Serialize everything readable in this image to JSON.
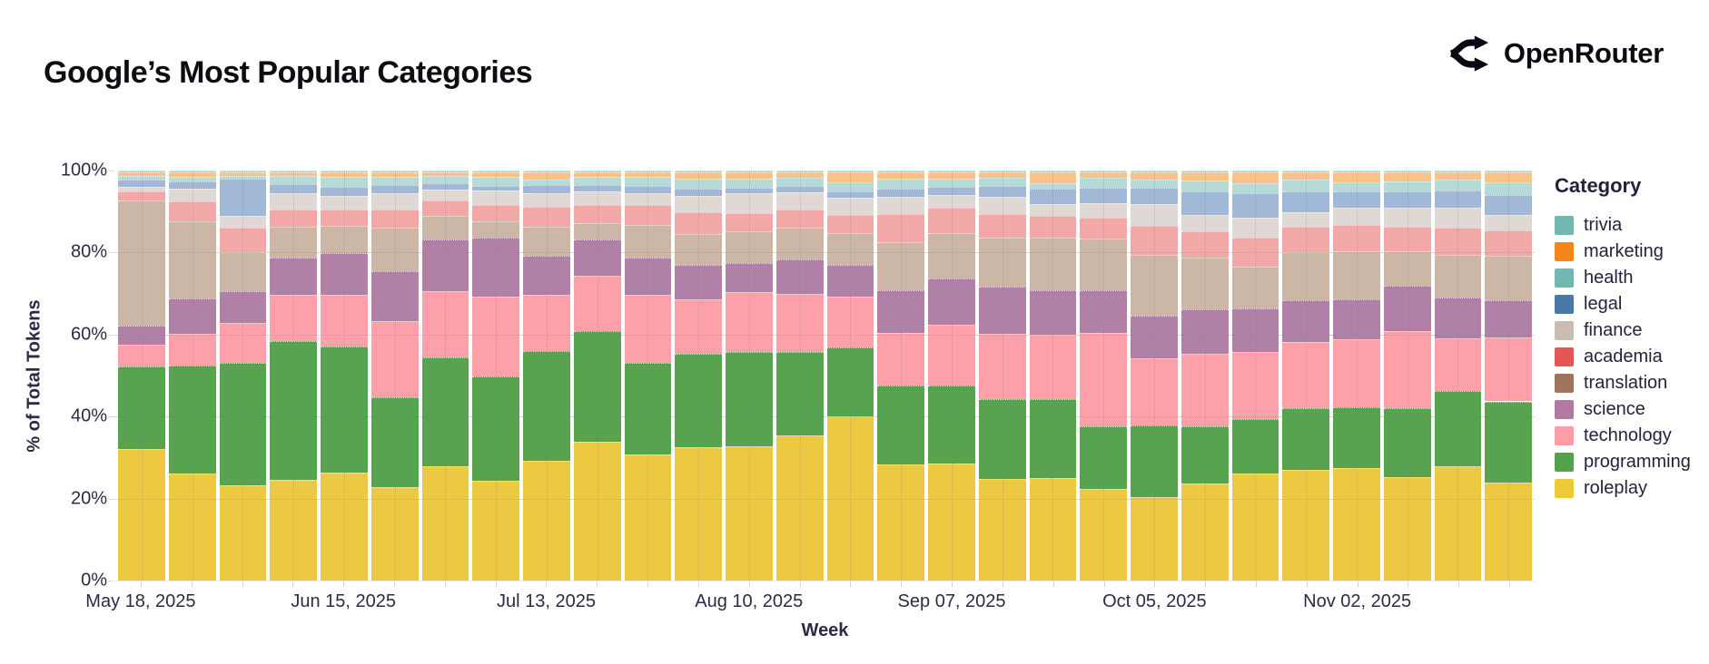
{
  "header": {
    "title": "Google’s Most Popular Categories",
    "brand": "OpenRouter"
  },
  "chart_data": {
    "type": "bar",
    "subtype": "stacked-100-percent",
    "title": "Google’s Most Popular Categories",
    "xlabel": "Week",
    "ylabel": "% of Total Tokens",
    "ylim": [
      0,
      100
    ],
    "grid": true,
    "y_ticks": [
      "0%",
      "20%",
      "40%",
      "60%",
      "80%",
      "100%"
    ],
    "legend_title": "Category",
    "legend_position": "right",
    "x": [
      "May 18, 2025",
      "May 25, 2025",
      "Jun 01, 2025",
      "Jun 08, 2025",
      "Jun 15, 2025",
      "Jun 22, 2025",
      "Jun 29, 2025",
      "Jul 06, 2025",
      "Jul 13, 2025",
      "Jul 20, 2025",
      "Jul 27, 2025",
      "Aug 03, 2025",
      "Aug 10, 2025",
      "Aug 17, 2025",
      "Aug 24, 2025",
      "Aug 31, 2025",
      "Sep 07, 2025",
      "Sep 14, 2025",
      "Sep 21, 2025",
      "Sep 28, 2025",
      "Oct 05, 2025",
      "Oct 12, 2025",
      "Oct 19, 2025",
      "Oct 26, 2025",
      "Nov 02, 2025",
      "Nov 09, 2025",
      "Nov 16, 2025",
      "Nov 23, 2025"
    ],
    "labeled_x_indices": [
      0,
      4,
      8,
      12,
      16,
      20,
      24
    ],
    "stack_order_bottom_to_top": [
      "roleplay",
      "programming",
      "technology",
      "science",
      "translation",
      "academia",
      "finance",
      "legal",
      "health",
      "marketing",
      "trivia"
    ],
    "series": [
      {
        "name": "trivia",
        "legend_color": "#72b7b2",
        "bar_color": "#abd6d1",
        "patterned": false,
        "values": [
          0.4,
          0.4,
          0.4,
          0.4,
          0.4,
          0.5,
          0.4,
          0.4,
          0.4,
          0.4,
          0.4,
          0.4,
          0.4,
          0.4,
          0.4,
          0.4,
          0.4,
          0.4,
          0.4,
          0.4,
          0.4,
          0.4,
          0.4,
          0.4,
          0.4,
          0.4,
          0.4,
          0.4
        ]
      },
      {
        "name": "marketing",
        "legend_color": "#f58518",
        "bar_color": "#f9c386",
        "patterned": false,
        "values": [
          1.0,
          1.1,
          1.0,
          1.0,
          1.2,
          1.1,
          1.0,
          1.1,
          1.7,
          1.1,
          1.2,
          1.5,
          1.5,
          1.3,
          2.4,
          1.6,
          1.5,
          1.4,
          2.6,
          1.4,
          1.8,
          2.0,
          2.8,
          1.8,
          2.5,
          2.2,
          1.9,
          2.5
        ]
      },
      {
        "name": "health",
        "legend_color": "#72b7b2",
        "bar_color": "#b6dbd6",
        "patterned": false,
        "values": [
          0.7,
          1.2,
          0.5,
          2.0,
          2.4,
          2.0,
          1.8,
          2.3,
          1.5,
          2.0,
          2.2,
          2.5,
          2.4,
          2.0,
          2.2,
          2.4,
          2.1,
          2.0,
          1.5,
          2.4,
          2.0,
          2.6,
          2.4,
          2.8,
          2.1,
          2.4,
          2.6,
          3.0
        ]
      },
      {
        "name": "legal",
        "legend_color": "#4c78a8",
        "bar_color": "#a1b9d6",
        "patterned": true,
        "values": [
          1.8,
          1.8,
          9.2,
          2.2,
          2.1,
          1.9,
          1.5,
          1.0,
          2.0,
          1.5,
          1.7,
          1.7,
          1.3,
          1.5,
          1.6,
          2.0,
          1.9,
          2.6,
          3.7,
          3.8,
          3.9,
          5.9,
          5.8,
          5.2,
          4.1,
          4.1,
          4.2,
          4.9
        ]
      },
      {
        "name": "finance",
        "legend_color": "#c9bcb1",
        "bar_color": "#e0d8d5",
        "patterned": true,
        "values": [
          1.1,
          3.0,
          2.9,
          4.0,
          3.5,
          4.0,
          2.6,
          3.5,
          3.3,
          3.5,
          3.0,
          4.0,
          4.7,
          4.4,
          4.2,
          4.3,
          3.2,
          4.3,
          2.9,
          3.5,
          5.3,
          4.0,
          5.0,
          3.5,
          4.2,
          4.6,
          4.9,
          3.7
        ]
      },
      {
        "name": "academia",
        "legend_color": "#e45756",
        "bar_color": "#f2a8a6",
        "patterned": false,
        "values": [
          2.3,
          4.8,
          5.9,
          4.1,
          4.0,
          4.4,
          3.7,
          4.1,
          4.9,
          4.4,
          4.8,
          5.3,
          4.6,
          4.3,
          4.4,
          6.8,
          6.1,
          5.7,
          5.2,
          5.0,
          7.1,
          6.4,
          7.1,
          6.3,
          6.3,
          6.0,
          6.6,
          6.4
        ]
      },
      {
        "name": "translation",
        "legend_color": "#9d755d",
        "bar_color": "#ccb6a5",
        "patterned": false,
        "values": [
          30.5,
          18.8,
          9.6,
          7.5,
          6.5,
          10.7,
          5.9,
          4.0,
          7.0,
          4.0,
          7.9,
          7.5,
          7.7,
          7.7,
          7.7,
          11.7,
          11.1,
          12.0,
          12.9,
          12.8,
          15.0,
          12.5,
          10.2,
          11.6,
          11.9,
          8.4,
          10.4,
          10.8
        ]
      },
      {
        "name": "science",
        "legend_color": "#b279a2",
        "bar_color": "#b180a7",
        "patterned": false,
        "values": [
          4.6,
          8.8,
          7.7,
          9.2,
          10.3,
          12.1,
          12.5,
          14.4,
          9.6,
          8.7,
          9.2,
          8.5,
          7.0,
          8.5,
          7.8,
          10.3,
          11.4,
          11.4,
          10.9,
          10.2,
          10.3,
          10.9,
          10.5,
          10.3,
          9.6,
          11.1,
          10.0,
          9.0
        ]
      },
      {
        "name": "technology",
        "legend_color": "#ff9da6",
        "bar_color": "#fda0a9",
        "patterned": false,
        "values": [
          5.3,
          7.7,
          9.6,
          11.1,
          12.6,
          18.7,
          16.2,
          19.5,
          13.6,
          13.5,
          16.6,
          13.3,
          14.7,
          14.2,
          12.5,
          12.9,
          14.8,
          16.0,
          15.6,
          22.9,
          16.4,
          17.6,
          16.5,
          16.1,
          16.6,
          18.8,
          12.8,
          15.6
        ]
      },
      {
        "name": "programming",
        "legend_color": "#54a24b",
        "bar_color": "#58a350",
        "patterned": false,
        "values": [
          20.3,
          26.4,
          30.0,
          33.9,
          30.6,
          21.7,
          26.5,
          25.4,
          26.9,
          27.1,
          22.2,
          22.7,
          22.9,
          20.3,
          16.8,
          19.2,
          19.0,
          19.5,
          19.2,
          15.3,
          17.5,
          14.1,
          13.3,
          14.9,
          14.9,
          16.8,
          18.4,
          19.7
        ]
      },
      {
        "name": "roleplay",
        "legend_color": "#eeca3b",
        "bar_color": "#edc943",
        "patterned": false,
        "values": [
          32.0,
          26.0,
          23.2,
          24.6,
          26.4,
          22.9,
          27.9,
          24.3,
          29.1,
          33.8,
          30.8,
          32.6,
          32.8,
          35.4,
          40.0,
          28.4,
          28.5,
          24.7,
          25.1,
          22.3,
          20.3,
          23.6,
          26.0,
          27.1,
          27.4,
          25.2,
          27.8,
          24.0
        ]
      }
    ]
  }
}
